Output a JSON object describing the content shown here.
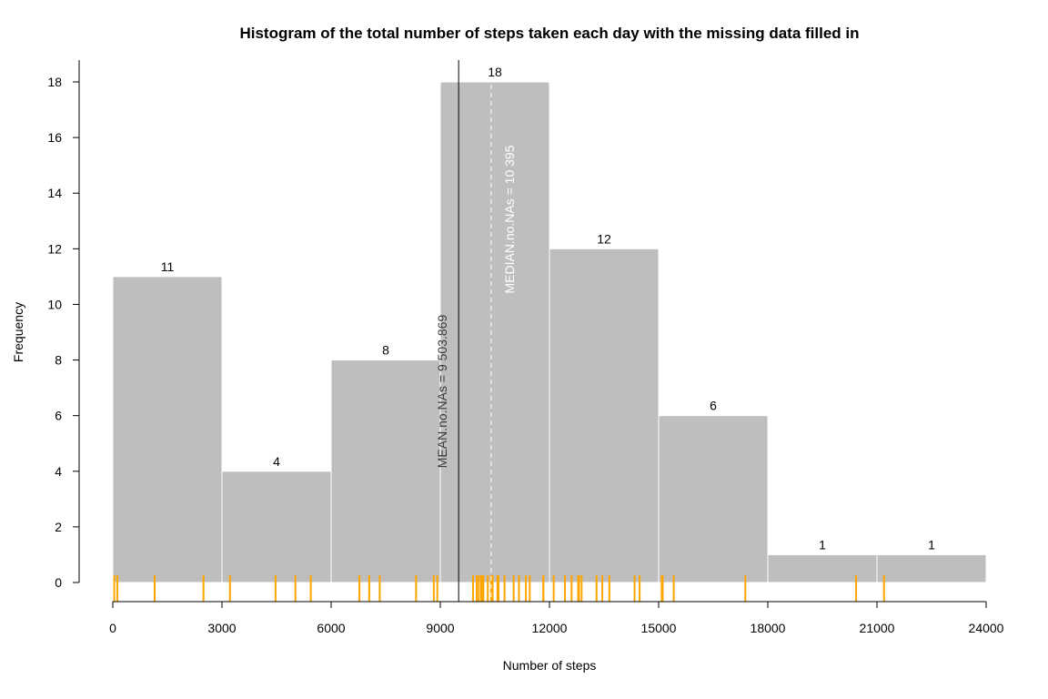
{
  "chart_data": {
    "type": "bar",
    "title": "Histogram of the total number of steps taken each day with the missing data filled in",
    "xlabel": "Number of steps",
    "ylabel": "Frequency",
    "bins": [
      {
        "from": 0,
        "to": 3000,
        "count": 11,
        "label": "11"
      },
      {
        "from": 3000,
        "to": 6000,
        "count": 4,
        "label": "4"
      },
      {
        "from": 6000,
        "to": 9000,
        "count": 8,
        "label": "8"
      },
      {
        "from": 9000,
        "to": 12000,
        "count": 18,
        "label": "18"
      },
      {
        "from": 12000,
        "to": 15000,
        "count": 12,
        "label": "12"
      },
      {
        "from": 15000,
        "to": 18000,
        "count": 6,
        "label": "6"
      },
      {
        "from": 18000,
        "to": 21000,
        "count": 1,
        "label": "1"
      },
      {
        "from": 21000,
        "to": 24000,
        "count": 1,
        "label": "1"
      }
    ],
    "xlim": [
      0,
      24000
    ],
    "ylim": [
      0,
      18
    ],
    "x_ticks": [
      0,
      3000,
      6000,
      9000,
      12000,
      15000,
      18000,
      21000,
      24000
    ],
    "x_tick_labels": [
      "0",
      "3000",
      "6000",
      "9000",
      "12000",
      "15000",
      "18000",
      "21000",
      "24000"
    ],
    "y_ticks": [
      0,
      2,
      4,
      6,
      8,
      10,
      12,
      14,
      16,
      18
    ],
    "y_tick_labels": [
      "0",
      "2",
      "4",
      "6",
      "8",
      "10",
      "12",
      "14",
      "16",
      "18"
    ],
    "grid": false,
    "bar_color": "#bebebe",
    "bar_border_color": "#ffffff",
    "rug_color": "#ffa500",
    "rug_values": [
      41,
      126,
      1150,
      2492,
      3219,
      4472,
      5018,
      5441,
      6778,
      7047,
      7336,
      8334,
      8821,
      8918,
      9900,
      10000,
      10056,
      10119,
      10139,
      10183,
      10304,
      10395,
      10439,
      10571,
      10600,
      10765,
      11015,
      11162,
      11352,
      11458,
      11834,
      11829,
      12116,
      12426,
      12608,
      12787,
      12811,
      12883,
      13294,
      13452,
      13646,
      14339,
      14478,
      15084,
      15110,
      15414,
      17382,
      20427,
      21194
    ],
    "reference_lines": [
      {
        "name": "mean",
        "value": 9503.869,
        "label": "MEAN.no.NAs = 9 503.869",
        "color": "#000000",
        "text_color": "#3a3a3a",
        "style": "solid"
      },
      {
        "name": "median",
        "value": 10395,
        "label": "MEDIAN.no.NAs = 10 395",
        "color": "#ffffff",
        "text_color": "#ffffff",
        "style": "dashed"
      }
    ]
  }
}
